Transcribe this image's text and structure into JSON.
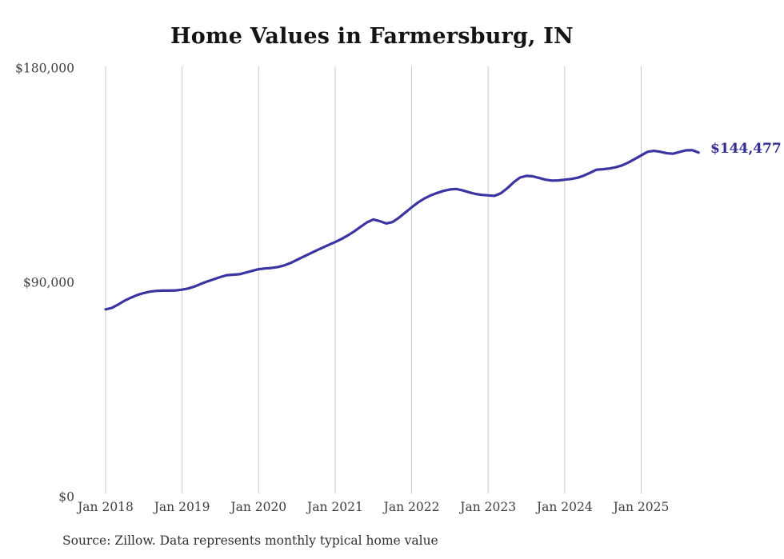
{
  "header": {
    "title": "Home Values in Farmersburg, IN"
  },
  "footer": {
    "source_note": "Source: Zillow. Data represents monthly typical home value"
  },
  "chart_data": {
    "type": "line",
    "title": "Home Values in Farmersburg, IN",
    "xlabel": "",
    "ylabel": "",
    "x_start": "2018-01",
    "x_end": "2025-10",
    "x_frequency": "monthly",
    "values": [
      78600,
      79300,
      80700,
      82300,
      83600,
      84700,
      85500,
      86100,
      86400,
      86500,
      86500,
      86600,
      86900,
      87400,
      88300,
      89400,
      90400,
      91300,
      92200,
      93000,
      93200,
      93400,
      94100,
      94800,
      95500,
      95800,
      96000,
      96400,
      97100,
      98100,
      99400,
      100700,
      102000,
      103300,
      104500,
      105700,
      106900,
      108200,
      109700,
      111400,
      113300,
      115200,
      116400,
      115700,
      114700,
      115300,
      117100,
      119300,
      121500,
      123500,
      125200,
      126500,
      127500,
      128400,
      129000,
      129200,
      128600,
      127800,
      127100,
      126700,
      126500,
      126300,
      127400,
      129500,
      132000,
      134000,
      134700,
      134500,
      133800,
      133100,
      132700,
      132800,
      133100,
      133400,
      133900,
      134800,
      136000,
      137300,
      137500,
      137800,
      138300,
      139100,
      140300,
      141800,
      143300,
      144800,
      145200,
      144800,
      144200,
      144000,
      144700,
      145400,
      145500,
      144477
    ],
    "final_value": 144477,
    "end_label": "$144,477",
    "ylim": [
      0,
      180000
    ],
    "y_ticks": [
      {
        "value": 0,
        "label": "$0"
      },
      {
        "value": 90000,
        "label": "$90,000"
      },
      {
        "value": 180000,
        "label": "$180,000"
      }
    ],
    "x_ticks": [
      {
        "month_index": 0,
        "label": "Jan 2018"
      },
      {
        "month_index": 12,
        "label": "Jan 2019"
      },
      {
        "month_index": 24,
        "label": "Jan 2020"
      },
      {
        "month_index": 36,
        "label": "Jan 2021"
      },
      {
        "month_index": 48,
        "label": "Jan 2022"
      },
      {
        "month_index": 60,
        "label": "Jan 2023"
      },
      {
        "month_index": 72,
        "label": "Jan 2024"
      },
      {
        "month_index": 84,
        "label": "Jan 2025"
      }
    ],
    "grid": "vertical-only",
    "legend": "none",
    "line_color": "#3b34a1",
    "end_label_color": "#322c96",
    "grid_color": "#c9c9c9",
    "tick_color": "#3f3f3f"
  }
}
